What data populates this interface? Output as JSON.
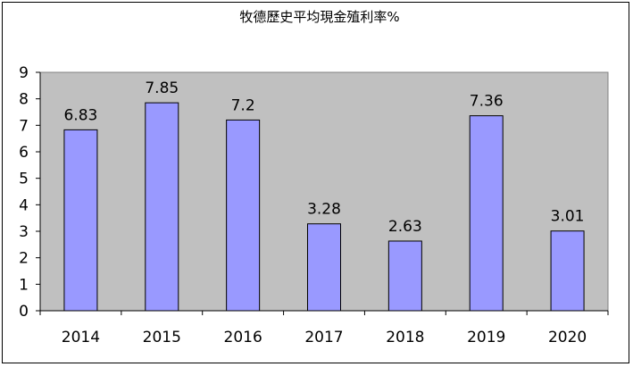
{
  "chart_data": {
    "type": "bar",
    "title": "牧德歷史平均現金殖利率%",
    "categories": [
      "2014",
      "2015",
      "2016",
      "2017",
      "2018",
      "2019",
      "2020"
    ],
    "values": [
      6.83,
      7.85,
      7.2,
      3.28,
      2.63,
      7.36,
      3.01
    ],
    "data_labels": [
      "6.83",
      "7.85",
      "7.2",
      "3.28",
      "2.63",
      "7.36",
      "3.01"
    ],
    "ylim": [
      0,
      9
    ],
    "yticks": [
      "0",
      "1",
      "2",
      "3",
      "4",
      "5",
      "6",
      "7",
      "8",
      "9"
    ],
    "grid": false,
    "legend": "none",
    "colors": {
      "bar_fill": "#9999ff",
      "bar_stroke": "#000000",
      "plot_bg": "#c0c0c0",
      "axis": "#000000"
    }
  }
}
